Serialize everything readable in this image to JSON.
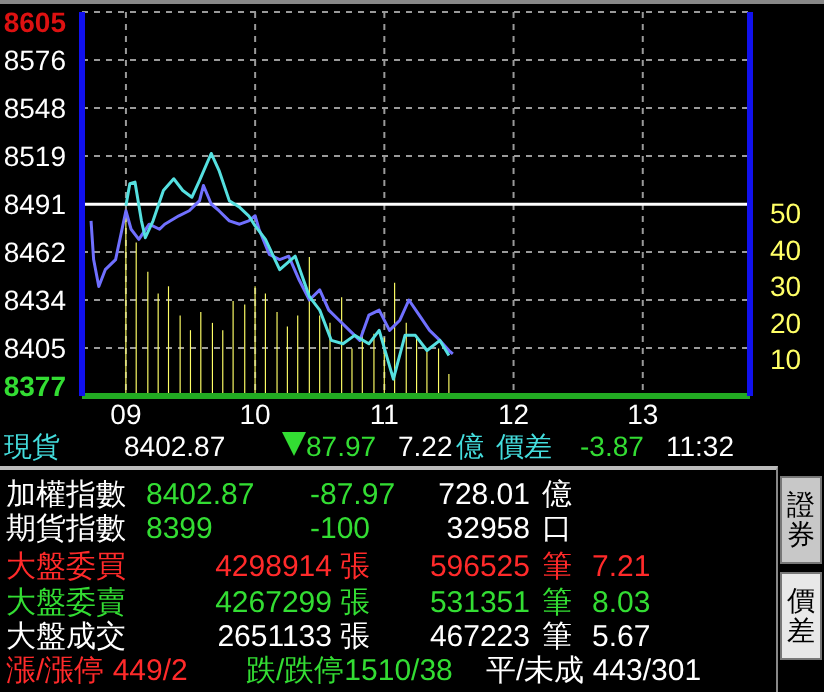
{
  "chart_data": {
    "type": "line",
    "marker": "none",
    "line_style": "solid",
    "grid": true,
    "xlim": [
      8.66,
      13.83
    ],
    "xticks": [
      {
        "value": 9,
        "label": "09"
      },
      10,
      11,
      12,
      13
    ],
    "ylim": [
      8377,
      8605
    ],
    "yticks": [
      8377,
      {
        "value": 8405.5,
        "label": "8405"
      },
      8434,
      {
        "value": 8462.5,
        "label": "8462"
      },
      8491,
      {
        "value": 8519.5,
        "label": "8519"
      },
      8548,
      {
        "value": 8576.5,
        "label": "8576"
      },
      8605
    ],
    "y2lim": [
      0,
      105
    ],
    "y2ticks": [
      10,
      20,
      30,
      40,
      50
    ],
    "ref_lines": [
      {
        "axis": "y",
        "value": 8490.84,
        "color": "#ffffff"
      }
    ],
    "series": [
      {
        "type": "bar",
        "axis": "y2",
        "color": "#ffff66",
        "x": [
          9,
          9.08,
          9.17,
          9.25,
          9.33,
          9.42,
          9.5,
          9.58,
          9.67,
          9.75,
          9.83,
          9.92,
          10,
          10.08,
          10.17,
          10.25,
          10.33,
          10.42,
          10.5,
          10.58,
          10.67,
          10.75,
          10.83,
          10.92,
          11,
          11.08,
          11.17,
          11.25,
          11.33,
          11.42,
          11.5
        ],
        "values": [
          51,
          42,
          34,
          28,
          30,
          22,
          18,
          23,
          20,
          18,
          26,
          25,
          30,
          28,
          23,
          19,
          22,
          38,
          22,
          20,
          27,
          13,
          18,
          17,
          16,
          31,
          20,
          16,
          13,
          13,
          6
        ]
      },
      {
        "color": "#7070ff",
        "x": [
          8.73,
          8.75,
          8.79,
          8.84,
          8.92,
          9.0,
          9.04,
          9.1,
          9.18,
          9.26,
          9.3,
          9.41,
          9.49,
          9.57,
          9.6,
          9.66,
          9.72,
          9.8,
          9.88,
          9.95,
          10.0,
          10.03,
          10.11,
          10.19,
          10.26,
          10.34,
          10.42,
          10.5,
          10.57,
          10.65,
          10.73,
          10.81,
          10.88,
          10.96,
          11.04,
          11.12,
          11.19,
          11.27,
          11.35,
          11.43,
          11.5,
          11.53
        ],
        "values": [
          8481,
          8458,
          8442,
          8452,
          8458,
          8487,
          8476,
          8470,
          8479,
          8476,
          8479,
          8484,
          8487,
          8493,
          8502,
          8491,
          8487,
          8481,
          8479,
          8481,
          8484,
          8476,
          8461,
          8458,
          8460,
          8446,
          8434,
          8440,
          8428,
          8422,
          8416,
          8410,
          8425,
          8428,
          8416,
          8422,
          8434,
          8425,
          8416,
          8410,
          8404,
          8402
        ]
      },
      {
        "color": "#55e0e0",
        "x": [
          9.0,
          9.03,
          9.07,
          9.12,
          9.15,
          9.21,
          9.29,
          9.37,
          9.44,
          9.51,
          9.57,
          9.66,
          9.72,
          9.8,
          9.88,
          9.95,
          10.0,
          10.08,
          10.19,
          10.31,
          10.42,
          10.5,
          10.59,
          10.68,
          10.77,
          10.88,
          10.96,
          11.07,
          11.16,
          11.24,
          11.33,
          11.43,
          11.5
        ],
        "values": [
          8490,
          8503,
          8504,
          8481,
          8471,
          8481,
          8499,
          8506,
          8499,
          8495,
          8505,
          8521,
          8511,
          8493,
          8489,
          8484,
          8478,
          8470,
          8452,
          8460,
          8436,
          8428,
          8410,
          8408,
          8413,
          8408,
          8416,
          8387,
          8413,
          8413,
          8404,
          8410,
          8401
        ]
      }
    ],
    "annotations": [
      "現貨",
      "8402.87",
      "87.97",
      "7.22",
      "億",
      "價差",
      "-3.87",
      "11:32",
      "加權指數",
      "8402.87",
      "-87.97",
      "728.01",
      "億",
      "期貨指數",
      "8399",
      "-100",
      "32958",
      "口",
      "大盤委買",
      "4298914",
      "張",
      "596525",
      "筆",
      "7.21",
      "大盤委賣",
      "4267299",
      "張",
      "531351",
      "筆",
      "8.03",
      "大盤成交",
      "2651133",
      "張",
      "467223",
      "筆",
      "5.67",
      "漲/漲停 449/2",
      "跌/跌停1510/38",
      "平/未成 443/301",
      "證券",
      "價差"
    ]
  }
}
